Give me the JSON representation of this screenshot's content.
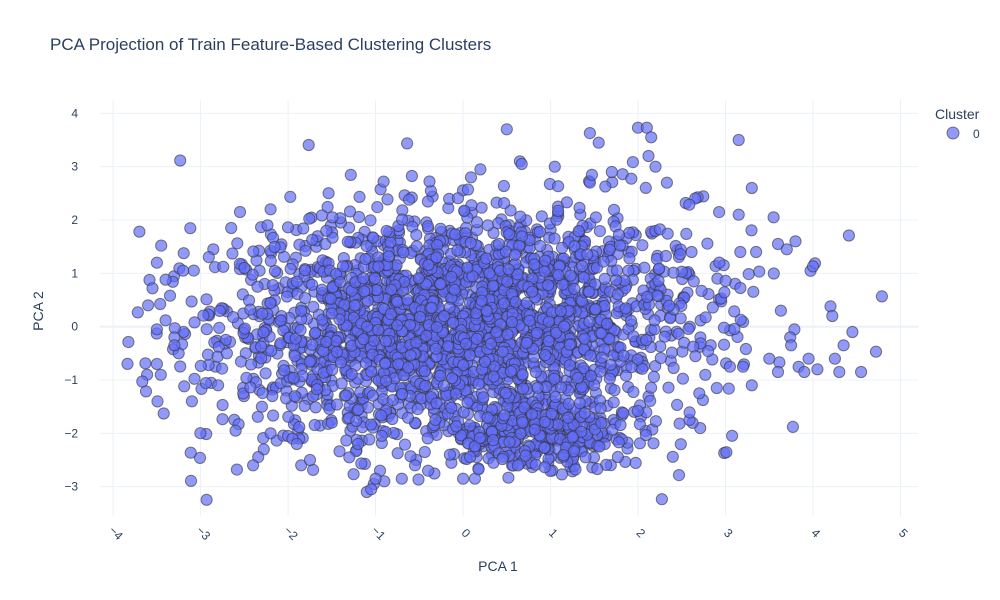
{
  "chart_data": {
    "type": "scatter",
    "title": "PCA Projection of Train Feature-Based Clustering Clusters",
    "xlabel": "PCA 1",
    "ylabel": "PCA 2",
    "xlim": [
      -4.15,
      5.2
    ],
    "ylim": [
      -3.55,
      4.25
    ],
    "x_ticks": [
      -4,
      -3,
      -2,
      -1,
      0,
      1,
      2,
      3,
      4,
      5
    ],
    "y_ticks": [
      -3,
      -2,
      -1,
      0,
      1,
      2,
      3,
      4
    ],
    "x_tick_labels": [
      "−4",
      "−3",
      "−2",
      "−1",
      "0",
      "1",
      "2",
      "3",
      "4",
      "5"
    ],
    "y_tick_labels": [
      "−3",
      "−2",
      "−1",
      "0",
      "1",
      "2",
      "3",
      "4"
    ],
    "grid": true,
    "legend": {
      "title": "Cluster",
      "position": "top-right",
      "entries": [
        "0"
      ]
    },
    "series": [
      {
        "name": "0",
        "color": "#636efa",
        "point_count": 3000,
        "x": [
          -3.7,
          -3.45,
          -3.5,
          -3.4,
          -3.55,
          -3.35,
          -3.5,
          -3.3,
          -3.6,
          -3.25,
          -3.3,
          -3.2,
          -3.4,
          -3.5,
          -3.1,
          -2.8,
          -2.6,
          -2.4,
          -2.2,
          -2.3,
          -2.0,
          -1.95,
          -2.5,
          -2.55,
          -2.65,
          -2.7,
          -2.35,
          -2.2,
          -1.85,
          -1.9,
          -1.75,
          -1.5,
          -1.3,
          -1.1,
          -1.02,
          -1.05,
          -0.95,
          -0.9,
          -1.2,
          -1.0,
          -0.7,
          -0.55,
          -0.4,
          -0.15,
          0.0,
          0.5,
          0.65,
          0.67,
          1.45,
          1.55,
          2.0,
          2.1,
          2.15,
          2.12,
          2.2,
          1.7,
          3.15,
          3.3,
          3.15,
          3.35,
          3.55,
          3.6,
          3.7,
          3.8,
          4.0,
          4.2,
          4.22,
          4.25,
          4.45,
          4.55,
          4.72,
          4.35,
          4.3,
          4.05,
          3.95,
          3.9,
          3.75,
          3.6,
          3.5,
          3.3,
          3.2,
          3.05,
          2.9,
          2.7
        ],
        "y": [
          1.78,
          1.52,
          1.2,
          0.88,
          0.72,
          0.58,
          -0.7,
          -0.2,
          0.4,
          -0.5,
          -0.35,
          1.05,
          0.12,
          -0.05,
          -1.4,
          -1.1,
          -1.95,
          -2.6,
          -2.0,
          -1.5,
          -2.05,
          -2.1,
          1.1,
          2.15,
          1.85,
          -0.5,
          0.75,
          2.2,
          -2.6,
          -2.2,
          -2.5,
          -1.8,
          -2.45,
          -3.1,
          -2.95,
          -3.05,
          -2.7,
          -2.9,
          -2.2,
          -2.85,
          -2.85,
          -2.6,
          -2.7,
          -2.4,
          -2.85,
          3.7,
          3.1,
          3.05,
          3.63,
          3.45,
          3.73,
          3.73,
          3.55,
          3.2,
          3.0,
          2.9,
          3.5,
          2.6,
          2.1,
          1.4,
          2.05,
          1.55,
          1.45,
          1.6,
          1.13,
          0.38,
          0.2,
          -0.6,
          -0.1,
          -0.85,
          -0.47,
          -0.35,
          -0.85,
          -0.8,
          -0.6,
          -0.85,
          -0.35,
          -0.85,
          -0.6,
          -1.1,
          -0.75,
          -0.75,
          -1.15,
          -1.25
        ]
      }
    ]
  }
}
